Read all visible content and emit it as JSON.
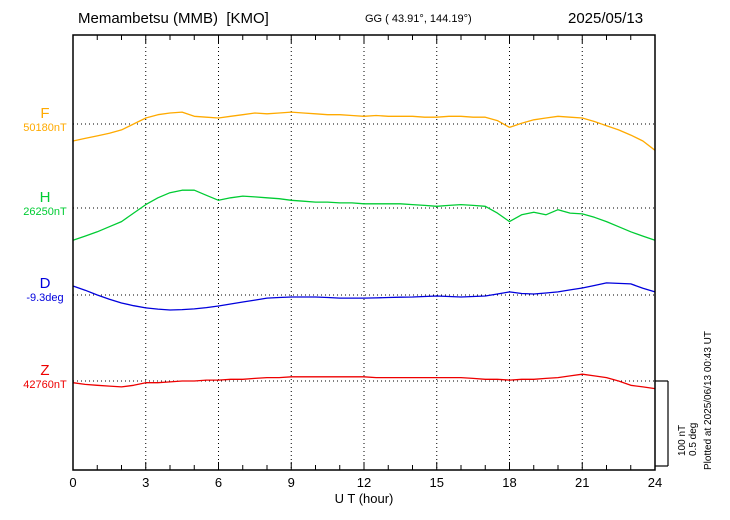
{
  "header": {
    "station": "Memambetsu (MMB)  [KMO]",
    "coords": "GG ( 43.91°, 144.19°)",
    "date": "2025/05/13"
  },
  "x_axis": {
    "label": "U T (hour)",
    "range": [
      0,
      24
    ],
    "ticks": [
      0,
      3,
      6,
      9,
      12,
      15,
      18,
      21,
      24
    ],
    "minor_step": 1
  },
  "scale_bar": {
    "labels": [
      "100 nT",
      "0.5 deg"
    ],
    "nT_per_div": 100,
    "deg_per_div": 0.5
  },
  "plotted_at": "Plotted at 2025/06/13 00:43 UT",
  "chart_data": {
    "type": "line",
    "title": "Memambetsu (MMB) [KMO] magnetogram 2025/05/13",
    "xlabel": "U T (hour)",
    "x_range": [
      0,
      24
    ],
    "x_step_hours": 0.5,
    "grid": "vertical-dotted-every-3h, dotted baseline per trace",
    "legend_position": "left-of-plot",
    "series": [
      {
        "name": "F",
        "unit": "nT",
        "base_label": "50180nT",
        "base_value": 50180,
        "color": "#ffaa00",
        "values": [
          50160,
          50163,
          50166,
          50169,
          50173,
          50180,
          50187,
          50191,
          50193,
          50194,
          50189,
          50188,
          50187,
          50189,
          50191,
          50193,
          50192,
          50193,
          50194,
          50193,
          50192,
          50191,
          50191,
          50190,
          50189,
          50190,
          50189,
          50189,
          50189,
          50188,
          50188,
          50189,
          50189,
          50188,
          50188,
          50184,
          50176,
          50181,
          50185,
          50187,
          50189,
          50188,
          50187,
          50183,
          50178,
          50173,
          50167,
          50160,
          50149
        ]
      },
      {
        "name": "H",
        "unit": "nT",
        "base_label": "26250nT",
        "base_value": 26250,
        "color": "#00cc33",
        "values": [
          26212,
          26217,
          26222,
          26228,
          26234,
          26244,
          26254,
          26262,
          26268,
          26271,
          26271,
          26265,
          26259,
          26262,
          26264,
          26263,
          26262,
          26261,
          26259,
          26258,
          26257,
          26257,
          26256,
          26256,
          26255,
          26255,
          26255,
          26255,
          26254,
          26253,
          26252,
          26253,
          26254,
          26253,
          26252,
          26244,
          26234,
          26242,
          26245,
          26242,
          26248,
          26244,
          26243,
          26239,
          26234,
          26228,
          26222,
          26217,
          26212
        ]
      },
      {
        "name": "D",
        "unit": "deg",
        "base_label": "-9.3deg",
        "base_value": -9.3,
        "color": "#0000dd",
        "values": [
          -9.247,
          -9.272,
          -9.3,
          -9.325,
          -9.347,
          -9.363,
          -9.376,
          -9.383,
          -9.388,
          -9.386,
          -9.382,
          -9.374,
          -9.365,
          -9.353,
          -9.341,
          -9.33,
          -9.318,
          -9.315,
          -9.312,
          -9.312,
          -9.312,
          -9.315,
          -9.318,
          -9.318,
          -9.318,
          -9.317,
          -9.315,
          -9.313,
          -9.312,
          -9.309,
          -9.306,
          -9.309,
          -9.312,
          -9.309,
          -9.306,
          -9.294,
          -9.282,
          -9.291,
          -9.294,
          -9.288,
          -9.282,
          -9.27,
          -9.259,
          -9.244,
          -9.229,
          -9.232,
          -9.235,
          -9.26,
          -9.282
        ]
      },
      {
        "name": "Z",
        "unit": "nT",
        "base_label": "42760nT",
        "base_value": 42760,
        "color": "#ee0000",
        "values": [
          42758,
          42756,
          42755,
          42754,
          42753,
          42755,
          42758,
          42758,
          42759,
          42760,
          42760,
          42761,
          42761,
          42762,
          42762,
          42763,
          42764,
          42764,
          42765,
          42765,
          42765,
          42765,
          42765,
          42765,
          42765,
          42764,
          42764,
          42764,
          42764,
          42764,
          42764,
          42764,
          42764,
          42763,
          42762,
          42762,
          42761,
          42762,
          42762,
          42763,
          42764,
          42766,
          42768,
          42766,
          42764,
          42760,
          42755,
          42753,
          42751
        ]
      }
    ]
  }
}
